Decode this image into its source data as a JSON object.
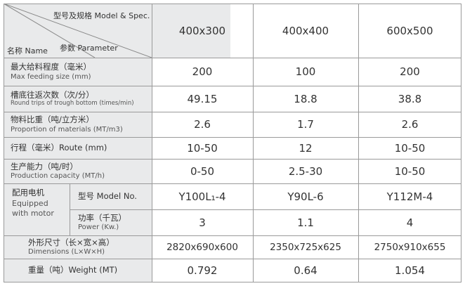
{
  "header": {
    "model_spec": "型号及规格 Model & Spec.",
    "name": "名称 Name",
    "parameter": "参数 Parameter",
    "models": [
      "400x300",
      "400x400",
      "600x500"
    ]
  },
  "rows": [
    {
      "zh": "最大给料程度（毫米）",
      "en": "Max feeding size (mm)",
      "values": [
        "200",
        "100",
        "200"
      ]
    },
    {
      "zh": "槽底往返次数（次/分）",
      "en": "Round trips of trough bottom (times/min)",
      "values": [
        "49.15",
        "18.8",
        "38.8"
      ]
    },
    {
      "zh": "物料比重（吨/立方米）",
      "en": "Proportion of materials (MT/m3)",
      "values": [
        "2.6",
        "1.7",
        "2.6"
      ]
    },
    {
      "zh": "行程（毫米）Route (mm)",
      "en": "",
      "values": [
        "10-50",
        "12",
        "10-50"
      ]
    },
    {
      "zh": "生产能力（吨/时）",
      "en": "Production capacity (MT/h)",
      "values": [
        "0-50",
        "2.5-30",
        "10-50"
      ]
    }
  ],
  "motor": {
    "zh": "配用电机",
    "en": [
      "Equipped",
      "with motor"
    ],
    "model": {
      "label": "型号 Model No.",
      "values": [
        "Y100L₁-4",
        "Y90L-6",
        "Y112M-4"
      ]
    },
    "power": {
      "zh": "功率（千瓦）",
      "en": "Power (Kw.)",
      "values": [
        "3",
        "1.1",
        "4"
      ]
    }
  },
  "dimensions": {
    "zh": "外形尺寸（长×宽×高）",
    "en": "Dimensions (L×W×H)",
    "values": [
      "2820x690x600",
      "2350x725x625",
      "2750x910x655"
    ]
  },
  "weight": {
    "label": "重量（吨）Weight (MT)",
    "values": [
      "0.792",
      "0.64",
      "1.054"
    ]
  }
}
